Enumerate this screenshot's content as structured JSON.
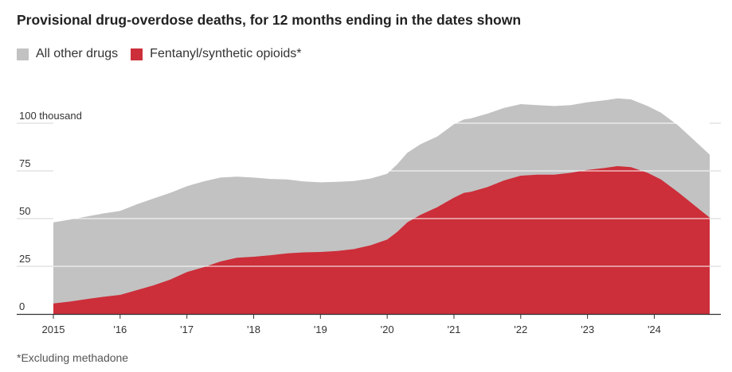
{
  "chart_data": {
    "type": "area",
    "stacked": true,
    "title": "Provisional drug-overdose deaths, for 12 months ending in the dates shown",
    "footnote": "*Excluding methadone",
    "legend_position": "top-left",
    "legend": [
      {
        "label": "All other drugs",
        "color": "#c2c2c2"
      },
      {
        "label": "Fentanyl/synthetic opioids*",
        "color": "#cc2f3a"
      }
    ],
    "y_ticks": [
      {
        "value": 0,
        "label": "0"
      },
      {
        "value": 25,
        "label": "25"
      },
      {
        "value": 50,
        "label": "50"
      },
      {
        "value": 75,
        "label": "75"
      },
      {
        "value": 100,
        "label": "100 thousand"
      }
    ],
    "x_ticks": [
      {
        "value": 2015,
        "label": "2015"
      },
      {
        "value": 2016,
        "label": "'16"
      },
      {
        "value": 2017,
        "label": "'17"
      },
      {
        "value": 2018,
        "label": "'18"
      },
      {
        "value": 2019,
        "label": "'19"
      },
      {
        "value": 2020,
        "label": "'20"
      },
      {
        "value": 2021,
        "label": "'21"
      },
      {
        "value": 2022,
        "label": "'22"
      },
      {
        "value": 2023,
        "label": "'23"
      },
      {
        "value": 2024,
        "label": "'24"
      }
    ],
    "xlim": [
      2015,
      2024.83
    ],
    "ylim": [
      0,
      115
    ],
    "grid": true,
    "units": "thousand deaths",
    "series": [
      {
        "name": "Fentanyl/synthetic opioids*",
        "color": "#cc2f3a",
        "points": [
          [
            2015.0,
            5.5
          ],
          [
            2015.25,
            6.5
          ],
          [
            2015.5,
            7.8
          ],
          [
            2015.75,
            9.0
          ],
          [
            2016.0,
            10.0
          ],
          [
            2016.25,
            12.5
          ],
          [
            2016.5,
            15.0
          ],
          [
            2016.75,
            18.0
          ],
          [
            2017.0,
            22.0
          ],
          [
            2017.25,
            24.5
          ],
          [
            2017.5,
            27.5
          ],
          [
            2017.75,
            29.5
          ],
          [
            2018.0,
            30.0
          ],
          [
            2018.25,
            30.8
          ],
          [
            2018.5,
            31.8
          ],
          [
            2018.75,
            32.3
          ],
          [
            2019.0,
            32.5
          ],
          [
            2019.25,
            33.0
          ],
          [
            2019.5,
            34.0
          ],
          [
            2019.75,
            36.0
          ],
          [
            2020.0,
            39.0
          ],
          [
            2020.15,
            43.0
          ],
          [
            2020.3,
            48.0
          ],
          [
            2020.5,
            52.0
          ],
          [
            2020.75,
            56.0
          ],
          [
            2021.0,
            61.0
          ],
          [
            2021.15,
            63.5
          ],
          [
            2021.25,
            64.0
          ],
          [
            2021.5,
            66.5
          ],
          [
            2021.75,
            70.0
          ],
          [
            2022.0,
            72.5
          ],
          [
            2022.25,
            73.0
          ],
          [
            2022.5,
            73.0
          ],
          [
            2022.75,
            74.0
          ],
          [
            2023.0,
            75.5
          ],
          [
            2023.25,
            76.5
          ],
          [
            2023.45,
            77.5
          ],
          [
            2023.65,
            77.0
          ],
          [
            2023.9,
            74.0
          ],
          [
            2024.1,
            70.5
          ],
          [
            2024.35,
            64.0
          ],
          [
            2024.6,
            57.0
          ],
          [
            2024.83,
            50.5
          ]
        ]
      },
      {
        "name": "All other drugs",
        "color": "#c2c2c2",
        "points": [
          [
            2015.0,
            42.5
          ],
          [
            2015.25,
            43.0
          ],
          [
            2015.5,
            43.3
          ],
          [
            2015.75,
            43.7
          ],
          [
            2016.0,
            44.0
          ],
          [
            2016.25,
            45.0
          ],
          [
            2016.5,
            45.5
          ],
          [
            2016.75,
            45.5
          ],
          [
            2017.0,
            45.0
          ],
          [
            2017.25,
            45.0
          ],
          [
            2017.5,
            44.0
          ],
          [
            2017.75,
            42.5
          ],
          [
            2018.0,
            41.5
          ],
          [
            2018.25,
            40.0
          ],
          [
            2018.5,
            38.7
          ],
          [
            2018.75,
            37.2
          ],
          [
            2019.0,
            36.5
          ],
          [
            2019.25,
            36.3
          ],
          [
            2019.5,
            35.7
          ],
          [
            2019.75,
            35.0
          ],
          [
            2020.0,
            34.5
          ],
          [
            2020.15,
            35.5
          ],
          [
            2020.3,
            36.5
          ],
          [
            2020.5,
            37.0
          ],
          [
            2020.75,
            37.0
          ],
          [
            2021.0,
            38.5
          ],
          [
            2021.15,
            38.5
          ],
          [
            2021.25,
            38.5
          ],
          [
            2021.5,
            38.5
          ],
          [
            2021.75,
            38.0
          ],
          [
            2022.0,
            37.5
          ],
          [
            2022.25,
            36.5
          ],
          [
            2022.5,
            36.0
          ],
          [
            2022.75,
            35.5
          ],
          [
            2023.0,
            35.5
          ],
          [
            2023.25,
            35.5
          ],
          [
            2023.45,
            35.5
          ],
          [
            2023.65,
            35.5
          ],
          [
            2023.9,
            35.0
          ],
          [
            2024.1,
            35.0
          ],
          [
            2024.35,
            35.0
          ],
          [
            2024.6,
            34.0
          ],
          [
            2024.83,
            33.0
          ]
        ]
      }
    ]
  }
}
